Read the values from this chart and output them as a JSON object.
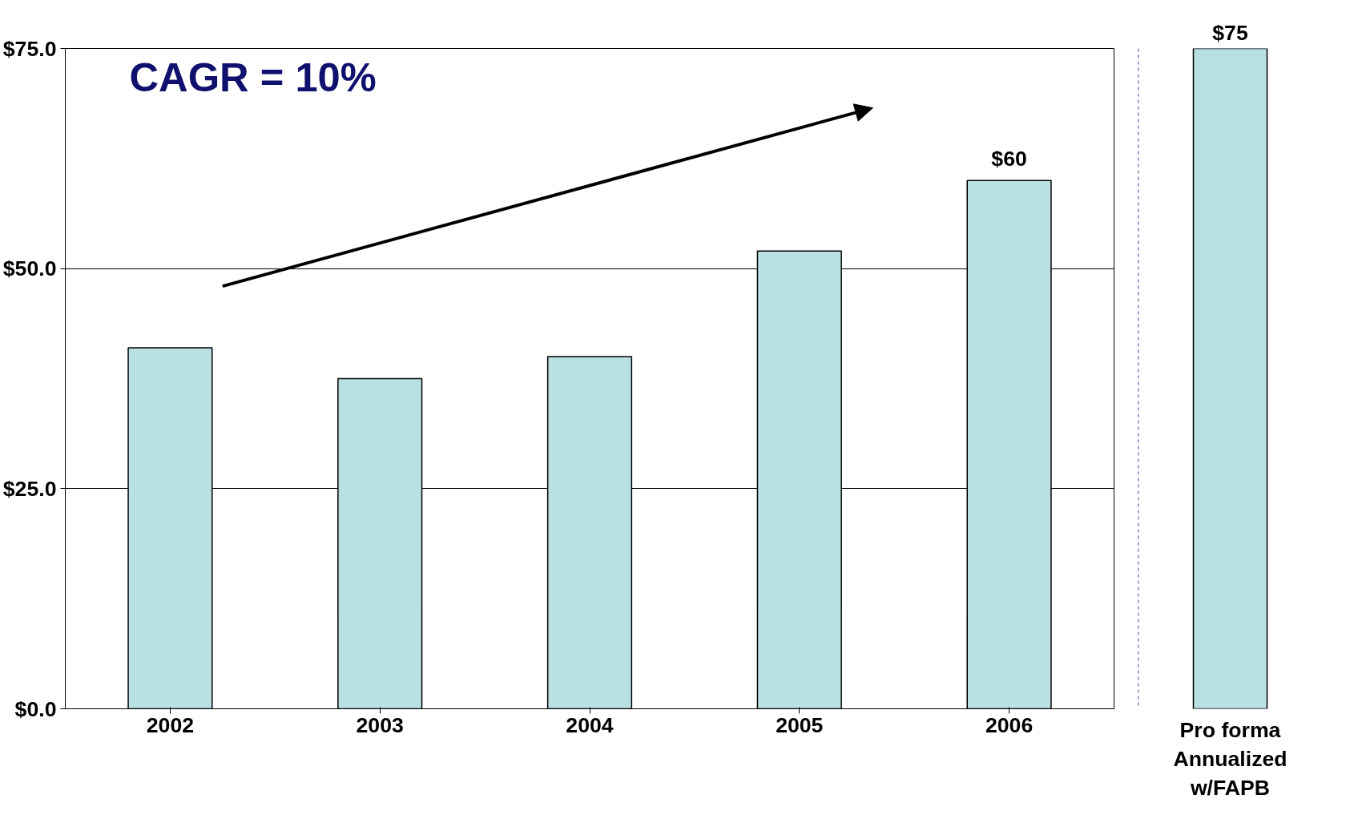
{
  "chart_data": [
    {
      "type": "bar",
      "categories": [
        "2002",
        "2003",
        "2004",
        "2005",
        "2006"
      ],
      "values": [
        41,
        37.5,
        40,
        52,
        60
      ],
      "color": "#b9e0e3",
      "ylim": [
        0,
        75
      ],
      "yticks": [
        {
          "value": 0,
          "label": "$0.0"
        },
        {
          "value": 25,
          "label": "$25.0"
        },
        {
          "value": 50,
          "label": "$50.0"
        },
        {
          "value": 75,
          "label": "$75.0"
        }
      ],
      "grid": "y",
      "value_labels": [
        null,
        null,
        null,
        null,
        "$60"
      ],
      "annotations": [
        "CAGR = 10%"
      ]
    },
    {
      "type": "bar",
      "categories": [
        "Pro forma\nAnnualized\nw/FAPB"
      ],
      "values": [
        75
      ],
      "color": "#b9e0e3",
      "ylim": [
        0,
        75
      ],
      "tick_labels": "x",
      "value_labels": [
        "$75"
      ]
    }
  ]
}
